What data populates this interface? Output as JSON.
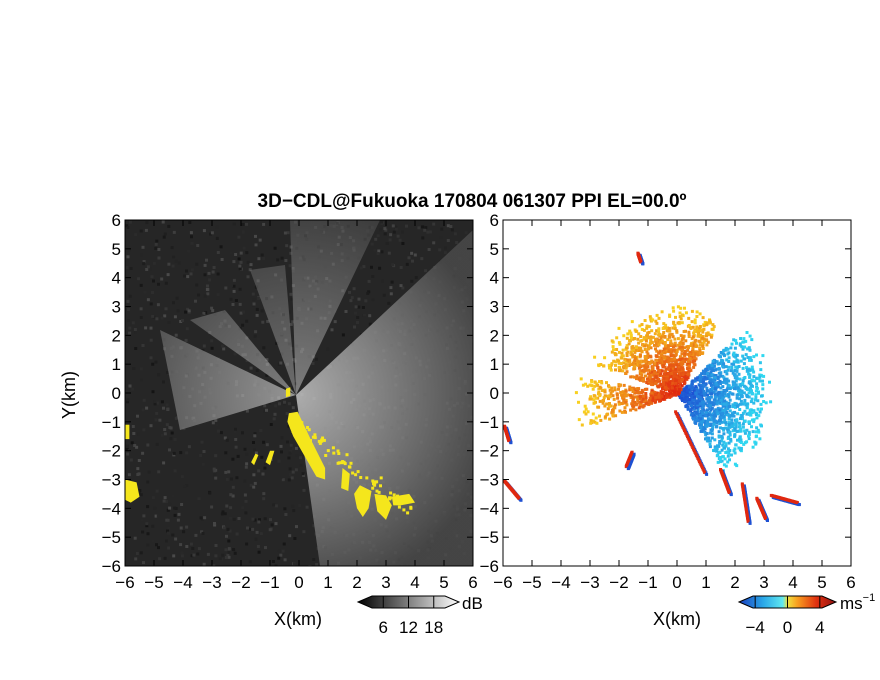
{
  "title": "3D−CDL@Fukuoka 170804 061307 PPI EL=00.0º",
  "chart_data": [
    {
      "type": "heatmap",
      "panel": "reflectivity",
      "xlabel": "X(km)",
      "ylabel": "Y(km)",
      "xlim": [
        -6,
        6
      ],
      "ylim": [
        -6,
        6
      ],
      "x_ticks": [
        "−6",
        "−5",
        "−4",
        "−3",
        "−2",
        "−1",
        "0",
        "1",
        "2",
        "3",
        "4",
        "5",
        "6"
      ],
      "y_ticks": [
        "−6",
        "−5",
        "−4",
        "−3",
        "−2",
        "−1",
        "0",
        "1",
        "2",
        "3",
        "4",
        "5",
        "6"
      ],
      "colorbar": {
        "unit": "dB",
        "range": [
          0,
          24
        ],
        "tick_labels": [
          "6",
          "12",
          "18"
        ],
        "tick_values": [
          6,
          12,
          18
        ]
      },
      "background_color": "#262626",
      "highlight_color": "#f5e61c"
    },
    {
      "type": "heatmap",
      "panel": "doppler-velocity",
      "xlabel": "X(km)",
      "xlim": [
        -6,
        6
      ],
      "ylim": [
        -6,
        6
      ],
      "x_ticks": [
        "−6",
        "−5",
        "−4",
        "−3",
        "−2",
        "−1",
        "0",
        "1",
        "2",
        "3",
        "4",
        "5",
        "6"
      ],
      "y_ticks": [
        "−6",
        "−5",
        "−4",
        "−3",
        "−2",
        "−1",
        "0",
        "1",
        "2",
        "3",
        "4",
        "5",
        "6"
      ],
      "colorbar": {
        "unit": "ms",
        "unit_exponent": "−1",
        "range": [
          -6,
          6
        ],
        "tick_labels": [
          "−4",
          "0",
          "4"
        ],
        "tick_values": [
          -4,
          0,
          4
        ]
      },
      "colors": {
        "negative_strong": "#1e50d2",
        "negative_weak": "#30d8f0",
        "positive_weak": "#f8d020",
        "positive_strong": "#e02810"
      }
    }
  ]
}
